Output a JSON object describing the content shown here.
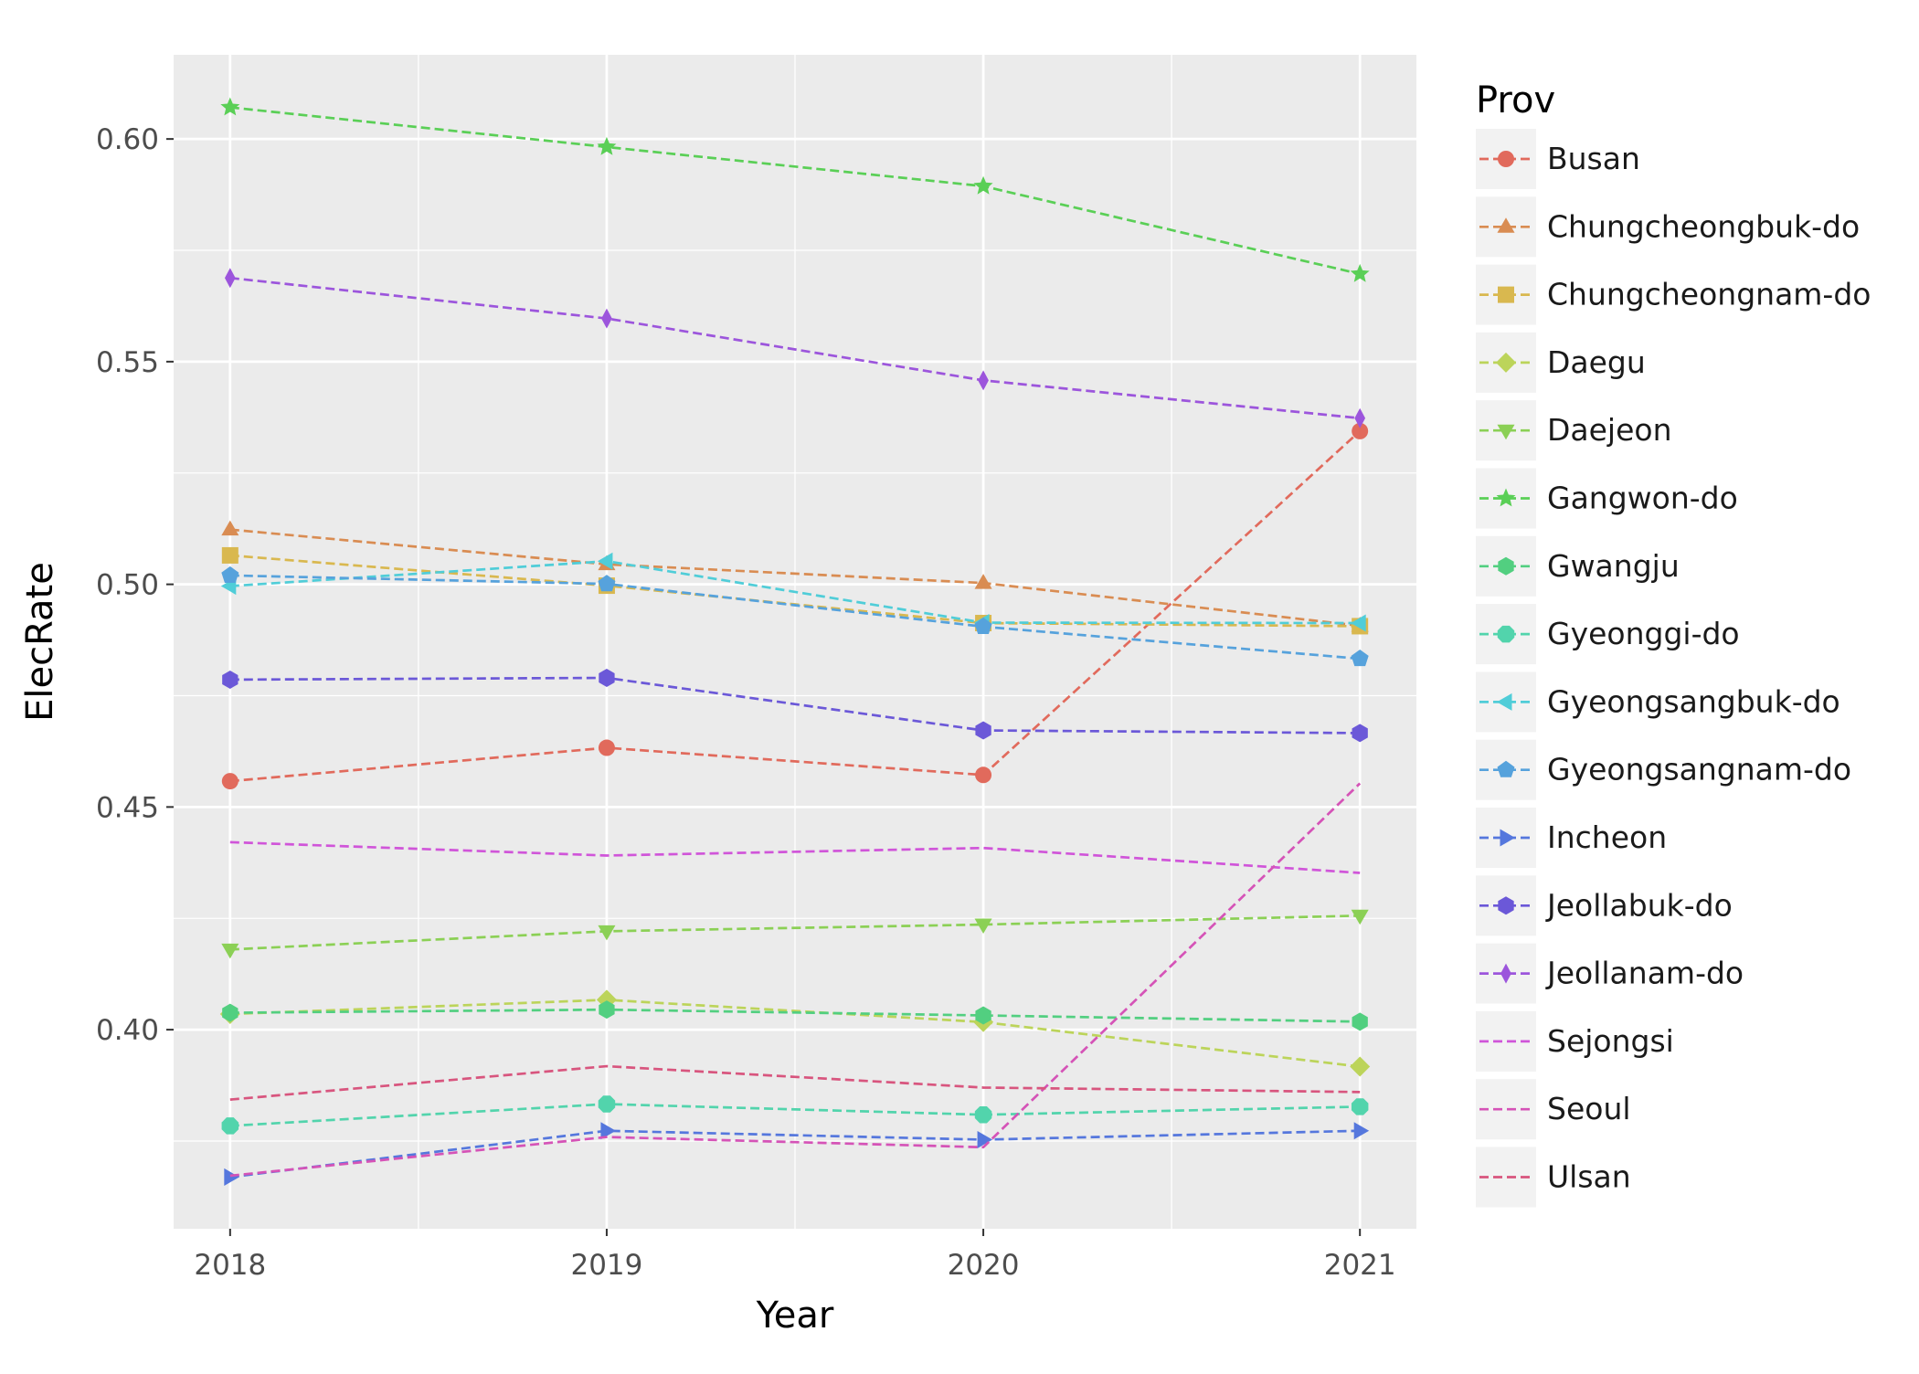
{
  "chart_data": {
    "type": "line",
    "xlabel": "Year",
    "ylabel": "ElecRate",
    "x": [
      2018,
      2019,
      2020,
      2021
    ],
    "x_ticks": [
      "2018",
      "2019",
      "2020",
      "2021"
    ],
    "y_ticks": [
      "0.40",
      "0.45",
      "0.50",
      "0.55",
      "0.60"
    ],
    "xlim": [
      2017.85,
      2021.15
    ],
    "ylim": [
      0.3553,
      0.6189
    ],
    "grid": true,
    "legend_title": "Prov",
    "legend_position": "right",
    "series": [
      {
        "name": "Busan",
        "color": "#E16A5C",
        "marker": "circle",
        "values": [
          0.4558,
          0.4633,
          0.4572,
          0.5344
        ]
      },
      {
        "name": "Chungcheongbuk-do",
        "color": "#D98C52",
        "marker": "triangle-up",
        "values": [
          0.5123,
          0.5045,
          0.5003,
          0.4907
        ]
      },
      {
        "name": "Chungcheongnam-do",
        "color": "#D9B84F",
        "marker": "square",
        "values": [
          0.5065,
          0.4997,
          0.4913,
          0.4906
        ]
      },
      {
        "name": "Daegu",
        "color": "#BCD45A",
        "marker": "diamond",
        "values": [
          0.4035,
          0.4067,
          0.4017,
          0.3917
        ]
      },
      {
        "name": "Daejeon",
        "color": "#8BD055",
        "marker": "triangle-down",
        "values": [
          0.418,
          0.4221,
          0.4236,
          0.4256
        ]
      },
      {
        "name": "Gangwon-do",
        "color": "#5ACF56",
        "marker": "star",
        "values": [
          0.6071,
          0.5982,
          0.5894,
          0.5697
        ]
      },
      {
        "name": "Gwangju",
        "color": "#52CF80",
        "marker": "hexagon",
        "values": [
          0.4038,
          0.4045,
          0.4032,
          0.4018
        ]
      },
      {
        "name": "Gyeonggi-do",
        "color": "#52D4AC",
        "marker": "octagon",
        "values": [
          0.3784,
          0.3833,
          0.3809,
          0.3827
        ]
      },
      {
        "name": "Gyeongsangbuk-do",
        "color": "#50CDD8",
        "marker": "triangle-left",
        "values": [
          0.4996,
          0.5052,
          0.4914,
          0.4913
        ]
      },
      {
        "name": "Gyeongsangnam-do",
        "color": "#56A2DC",
        "marker": "pentagon",
        "values": [
          0.502,
          0.5001,
          0.4905,
          0.4833
        ]
      },
      {
        "name": "Incheon",
        "color": "#5577DD",
        "marker": "triangle-right",
        "values": [
          0.3669,
          0.3773,
          0.3753,
          0.3773
        ]
      },
      {
        "name": "Jeollabuk-do",
        "color": "#6B58D8",
        "marker": "hexagon",
        "values": [
          0.4786,
          0.479,
          0.4672,
          0.4666
        ]
      },
      {
        "name": "Jeollanam-do",
        "color": "#9C55DC",
        "marker": "thin-diamond",
        "values": [
          0.5688,
          0.5597,
          0.5458,
          0.5373
        ]
      },
      {
        "name": "Sejongsi",
        "color": "#D055D9",
        "marker": "none",
        "values": [
          0.4421,
          0.4391,
          0.4408,
          0.4352
        ]
      },
      {
        "name": "Seoul",
        "color": "#D553B7",
        "marker": "none",
        "values": [
          0.3672,
          0.3759,
          0.3736,
          0.4553
        ]
      },
      {
        "name": "Ulsan",
        "color": "#D8557E",
        "marker": "none",
        "values": [
          0.3843,
          0.3918,
          0.387,
          0.386
        ]
      }
    ]
  }
}
